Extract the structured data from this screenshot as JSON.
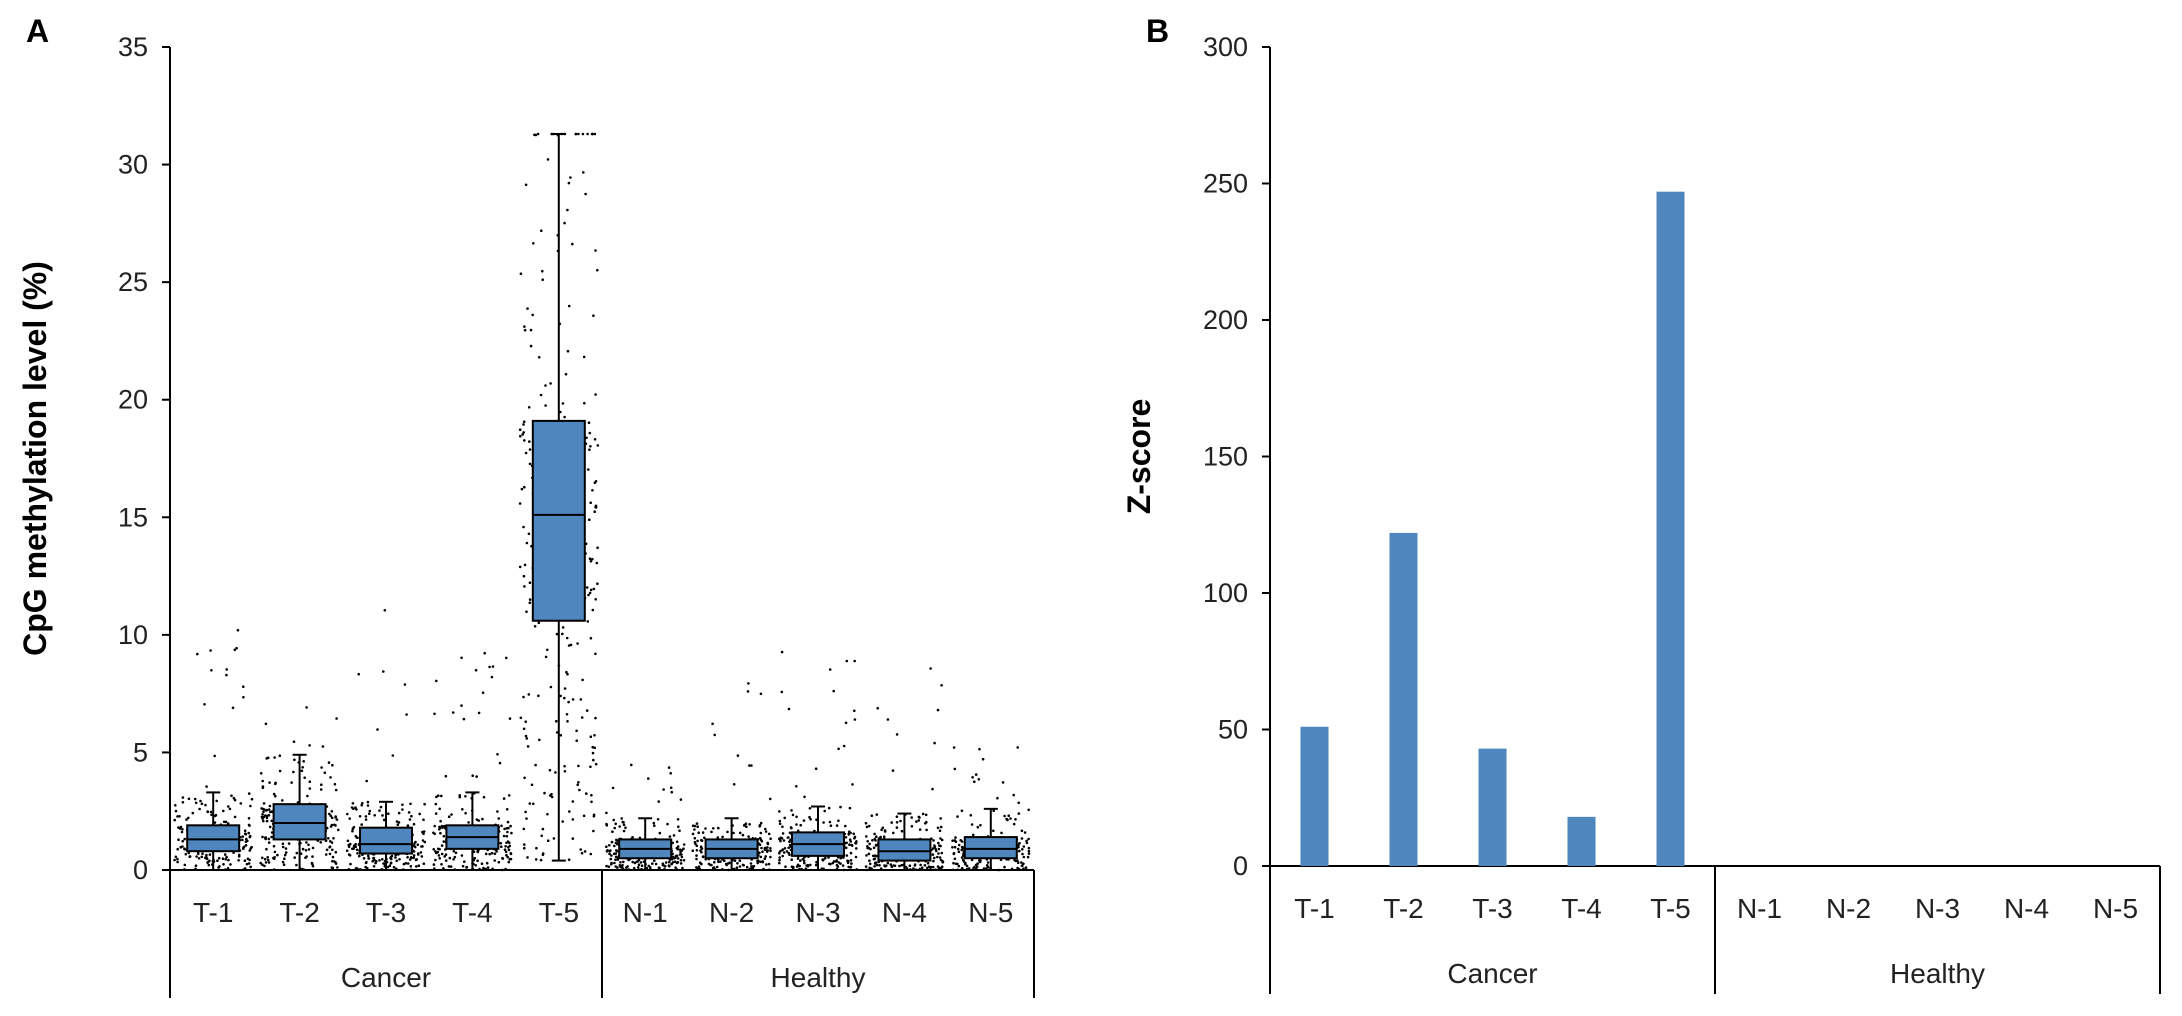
{
  "chart_data": [
    {
      "panel": "A",
      "type": "box",
      "ylabel": "CpG methylation level (%)",
      "ylim": [
        0,
        35
      ],
      "yticks": [
        0,
        5,
        10,
        15,
        20,
        25,
        30,
        35
      ],
      "categories": [
        "T-1",
        "T-2",
        "T-3",
        "T-4",
        "T-5",
        "N-1",
        "N-2",
        "N-3",
        "N-4",
        "N-5"
      ],
      "groups": [
        {
          "name": "Cancer",
          "categories": [
            "T-1",
            "T-2",
            "T-3",
            "T-4",
            "T-5"
          ]
        },
        {
          "name": "Healthy",
          "categories": [
            "N-1",
            "N-2",
            "N-3",
            "N-4",
            "N-5"
          ]
        }
      ],
      "boxes": [
        {
          "category": "T-1",
          "min": 0.0,
          "q1": 0.8,
          "median": 1.3,
          "q3": 1.9,
          "max": 3.3,
          "outlier_max": 11.0
        },
        {
          "category": "T-2",
          "min": 0.0,
          "q1": 1.3,
          "median": 2.0,
          "q3": 2.8,
          "max": 4.9,
          "outlier_max": 7.0
        },
        {
          "category": "T-3",
          "min": 0.0,
          "q1": 0.7,
          "median": 1.1,
          "q3": 1.8,
          "max": 2.9,
          "outlier_max": 11.7
        },
        {
          "category": "T-4",
          "min": 0.0,
          "q1": 0.9,
          "median": 1.4,
          "q3": 1.9,
          "max": 3.3,
          "outlier_max": 9.6
        },
        {
          "category": "T-5",
          "min": 0.4,
          "q1": 10.6,
          "median": 15.1,
          "q3": 19.1,
          "max": 31.3,
          "outlier_max": 31.3
        },
        {
          "category": "N-1",
          "min": 0.0,
          "q1": 0.5,
          "median": 0.9,
          "q3": 1.3,
          "max": 2.2,
          "outlier_max": 4.5
        },
        {
          "category": "N-2",
          "min": 0.0,
          "q1": 0.5,
          "median": 0.9,
          "q3": 1.3,
          "max": 2.2,
          "outlier_max": 8.2
        },
        {
          "category": "N-3",
          "min": 0.0,
          "q1": 0.6,
          "median": 1.1,
          "q3": 1.6,
          "max": 2.7,
          "outlier_max": 10.8
        },
        {
          "category": "N-4",
          "min": 0.0,
          "q1": 0.4,
          "median": 0.8,
          "q3": 1.3,
          "max": 2.4,
          "outlier_max": 10.0
        },
        {
          "category": "N-5",
          "min": 0.0,
          "q1": 0.5,
          "median": 0.9,
          "q3": 1.4,
          "max": 2.6,
          "outlier_max": 5.3
        }
      ],
      "box_color": "#4f86bd",
      "grid": false
    },
    {
      "panel": "B",
      "type": "bar",
      "ylabel": "Z-score",
      "ylim": [
        0,
        300
      ],
      "yticks": [
        0,
        50,
        100,
        150,
        200,
        250,
        300
      ],
      "categories": [
        "T-1",
        "T-2",
        "T-3",
        "T-4",
        "T-5",
        "N-1",
        "N-2",
        "N-3",
        "N-4",
        "N-5"
      ],
      "values": [
        51,
        122,
        43,
        18,
        247,
        0,
        0,
        0,
        0,
        0
      ],
      "groups": [
        {
          "name": "Cancer",
          "categories": [
            "T-1",
            "T-2",
            "T-3",
            "T-4",
            "T-5"
          ]
        },
        {
          "name": "Healthy",
          "categories": [
            "N-1",
            "N-2",
            "N-3",
            "N-4",
            "N-5"
          ]
        }
      ],
      "bar_color": "#4f86bd",
      "grid": false
    }
  ]
}
